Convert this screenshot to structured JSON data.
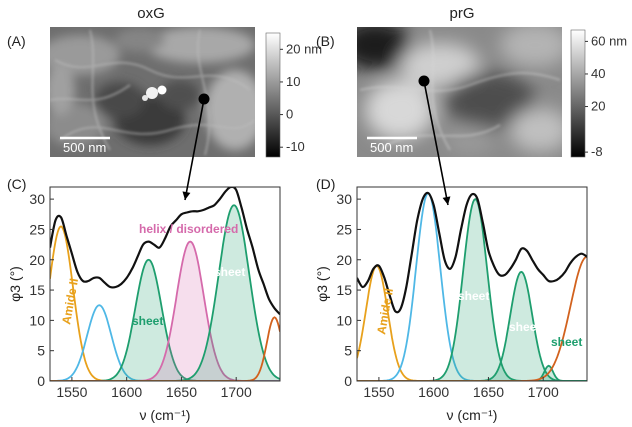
{
  "figure": {
    "titles": [
      "oxG",
      "prG"
    ],
    "panel_labels": [
      "(A)",
      "(B)",
      "(C)",
      "(D)"
    ],
    "scale_bars": [
      "500 nm",
      "500 nm"
    ],
    "colorbars": [
      {
        "ticks": [
          "20 nm",
          "10",
          "0",
          "-10"
        ],
        "values": [
          20,
          10,
          0,
          -10
        ],
        "range": [
          -13,
          25
        ]
      },
      {
        "ticks": [
          "60 nm",
          "40",
          "20",
          "-8"
        ],
        "values": [
          60,
          40,
          20,
          -8
        ],
        "range": [
          -11,
          67
        ]
      }
    ]
  },
  "colors": {
    "amide": "#e8a11c",
    "cyan": "#4fb8e6",
    "sheet": "#1e9e6e",
    "helix": "#d56aab",
    "orange": "#d2621e",
    "black": "#111111"
  },
  "chart_data": [
    {
      "type": "line",
      "panel": "C",
      "xlabel": "ν (cm⁻¹)",
      "ylabel": "φ3 (°)",
      "xlim": [
        1530,
        1740
      ],
      "ylim": [
        0,
        32
      ],
      "xticks": [
        1550,
        1600,
        1650,
        1700
      ],
      "yticks": [
        0,
        5,
        10,
        15,
        20,
        25,
        30
      ],
      "annotations": [
        "Amide II",
        "sheet",
        "helix / disordered",
        "sheet"
      ],
      "components": [
        {
          "label": "Amide II",
          "color": "amide",
          "center": 1540,
          "amplitude": 25.5,
          "sigma": 11,
          "filled": false
        },
        {
          "label": "",
          "color": "cyan",
          "center": 1575,
          "amplitude": 12.5,
          "sigma": 11,
          "filled": false
        },
        {
          "label": "sheet",
          "color": "sheet",
          "center": 1620,
          "amplitude": 20,
          "sigma": 12,
          "filled": true
        },
        {
          "label": "helix / disordered",
          "color": "helix",
          "center": 1658,
          "amplitude": 23,
          "sigma": 12.5,
          "filled": true
        },
        {
          "label": "sheet",
          "color": "sheet",
          "center": 1698,
          "amplitude": 29,
          "sigma": 14,
          "filled": true
        },
        {
          "label": "",
          "color": "orange",
          "center": 1735,
          "amplitude": 10.5,
          "sigma": 7,
          "filled": false
        }
      ],
      "spectrum": {
        "x": [
          1530,
          1535,
          1540,
          1545,
          1550,
          1555,
          1560,
          1565,
          1570,
          1575,
          1580,
          1585,
          1590,
          1595,
          1600,
          1605,
          1610,
          1615,
          1620,
          1625,
          1630,
          1635,
          1640,
          1645,
          1650,
          1655,
          1660,
          1665,
          1670,
          1675,
          1680,
          1685,
          1690,
          1695,
          1700,
          1705,
          1710,
          1715,
          1720,
          1725,
          1730,
          1735,
          1740
        ],
        "y": [
          22,
          26.5,
          27,
          24,
          21,
          18,
          16.5,
          16.5,
          17,
          17,
          16.2,
          15.5,
          15.5,
          16,
          17,
          18.5,
          20.5,
          22.5,
          23,
          22.5,
          22,
          23.5,
          25.5,
          26.5,
          27.5,
          27.8,
          28,
          28,
          28.2,
          28.6,
          29,
          30,
          31.2,
          32,
          31.5,
          28.5,
          25,
          22,
          18.5,
          16,
          13.5,
          12,
          11
        ]
      }
    },
    {
      "type": "line",
      "panel": "D",
      "xlabel": "ν (cm⁻¹)",
      "ylabel": "φ3 (°)",
      "xlim": [
        1530,
        1740
      ],
      "ylim": [
        0,
        32
      ],
      "xticks": [
        1550,
        1600,
        1650,
        1700
      ],
      "yticks": [
        0,
        5,
        10,
        15,
        20,
        25,
        30
      ],
      "annotations": [
        "Amide II",
        "sheet",
        "sheet",
        "sheet"
      ],
      "components": [
        {
          "label": "Amide II",
          "color": "amide",
          "center": 1548,
          "amplitude": 19,
          "sigma": 10,
          "filled": false
        },
        {
          "label": "",
          "color": "cyan",
          "center": 1595,
          "amplitude": 31,
          "sigma": 11,
          "filled": false
        },
        {
          "label": "sheet",
          "color": "sheet",
          "center": 1638,
          "amplitude": 30,
          "sigma": 11,
          "filled": true
        },
        {
          "label": "sheet",
          "color": "sheet",
          "center": 1680,
          "amplitude": 18,
          "sigma": 10,
          "filled": true
        },
        {
          "label": "sheet",
          "color": "sheet",
          "center": 1705,
          "amplitude": 2.5,
          "sigma": 4,
          "filled": true
        },
        {
          "label": "",
          "color": "orange",
          "center": 1740,
          "amplitude": 20.5,
          "sigma": 15,
          "filled": false
        }
      ],
      "spectrum": {
        "x": [
          1530,
          1535,
          1540,
          1545,
          1550,
          1555,
          1560,
          1565,
          1570,
          1575,
          1580,
          1585,
          1590,
          1595,
          1600,
          1605,
          1610,
          1615,
          1620,
          1625,
          1630,
          1635,
          1640,
          1645,
          1650,
          1655,
          1660,
          1665,
          1670,
          1675,
          1680,
          1685,
          1690,
          1695,
          1700,
          1705,
          1710,
          1715,
          1720,
          1725,
          1730,
          1735,
          1740
        ],
        "y": [
          17,
          15.5,
          16.5,
          18.5,
          19,
          17,
          14,
          11.5,
          12,
          15.5,
          21,
          26.5,
          30,
          31,
          29,
          24.5,
          20,
          18.5,
          20.5,
          25,
          29,
          30.8,
          30,
          26,
          21.5,
          19,
          17.5,
          17.5,
          18.5,
          20,
          21.8,
          21.5,
          20,
          18.5,
          17.5,
          16.5,
          16.5,
          17,
          18,
          19.5,
          20.5,
          21,
          20.5
        ]
      }
    }
  ]
}
